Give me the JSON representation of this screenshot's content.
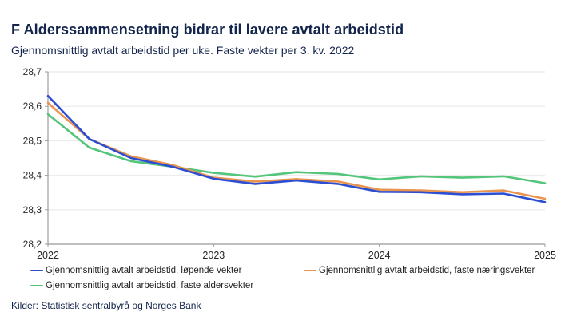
{
  "header": {
    "title": "F Alderssammensetning bidrar til lavere avtalt arbeidstid",
    "subtitle": "Gjennomsnittlig avtalt arbeidstid per uke. Faste vekter per 3. kv. 2022"
  },
  "footer": {
    "sources": "Kilder: Statistisk sentralbyrå og Norges Bank"
  },
  "colors": {
    "title_navy": "#14254d",
    "grid": "#ededed",
    "axis": "#9c9c9c",
    "tick_label": "#262626",
    "series_blue": "#2c4fd2",
    "series_orange": "#e9944f",
    "series_green": "#54c57a"
  },
  "chart_data": {
    "type": "line",
    "title": "F Alderssammensetning bidrar til lavere avtalt arbeidstid",
    "subtitle": "Gjennomsnittlig avtalt arbeidstid per uke. Faste vekter per 3. kv. 2022",
    "x": [
      "2022K1",
      "2022K2",
      "2022K3",
      "2022K4",
      "2023K1",
      "2023K2",
      "2023K3",
      "2023K4",
      "2024K1",
      "2024K2",
      "2024K3",
      "2024K4",
      "2025K1"
    ],
    "x_tick_labels": [
      "2022",
      "2023",
      "2024",
      "2025"
    ],
    "x_tick_indices": [
      0,
      4,
      8,
      12
    ],
    "y_ticks": [
      28.7,
      28.6,
      28.5,
      28.4,
      28.3,
      28.2
    ],
    "ylim": [
      28.2,
      28.7
    ],
    "grid": "horizontal",
    "legend_position": "bottom",
    "decimal_separator": ",",
    "series": [
      {
        "name": "Gjennomsnittlig avtalt arbeidstid, løpende vekter",
        "color": "#2c4fd2",
        "values": [
          28.63,
          28.505,
          28.45,
          28.425,
          28.39,
          28.375,
          28.385,
          28.375,
          28.352,
          28.351,
          28.345,
          28.347,
          28.322
        ]
      },
      {
        "name": "Gjennomsnittlig avtalt arbeidstid, faste næringsvekter",
        "color": "#e9944f",
        "values": [
          28.61,
          28.505,
          28.455,
          28.43,
          28.393,
          28.382,
          28.389,
          28.382,
          28.358,
          28.356,
          28.351,
          28.356,
          28.332
        ]
      },
      {
        "name": "Gjennomsnittlig avtalt arbeidstid, faste aldersvekter",
        "color": "#54c57a",
        "values": [
          28.577,
          28.48,
          28.441,
          28.425,
          28.407,
          28.396,
          28.409,
          28.404,
          28.388,
          28.397,
          28.393,
          28.397,
          28.377
        ]
      }
    ]
  }
}
